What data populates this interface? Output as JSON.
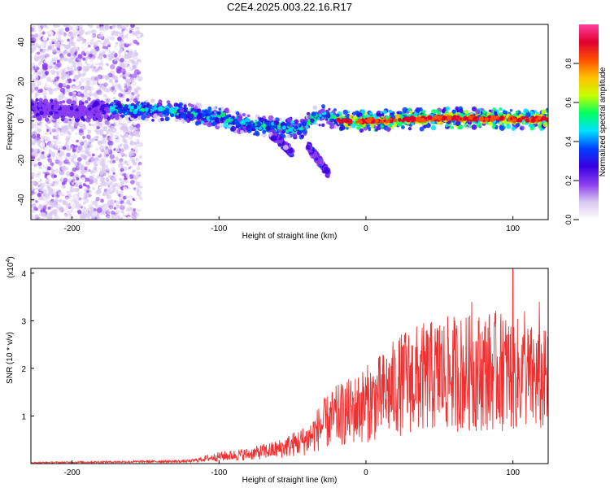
{
  "title": "C2E4.2025.003.22.16.R17",
  "chart_data": [
    {
      "type": "heatmap",
      "title": "C2E4.2025.003.22.16.R17",
      "xlabel": "Height of straight line (km)",
      "ylabel": "Frequency (Hz)",
      "xlim": [
        -228,
        124
      ],
      "ylim": [
        -50,
        49
      ],
      "x_ticks": [
        -200,
        -100,
        0,
        100
      ],
      "y_ticks": [
        -40,
        -20,
        0,
        20,
        40
      ],
      "colorbar": {
        "label": "Normalized spectral amplitude",
        "range": [
          0,
          1
        ],
        "ticks": [
          0.0,
          0.2,
          0.4,
          0.6,
          0.8
        ],
        "colormap": [
          "#ffffff",
          "#d8c8f0",
          "#8a3cf0",
          "#3a00e0",
          "#0040ff",
          "#00e0ff",
          "#00ff60",
          "#c8ff00",
          "#ffc000",
          "#ff5000",
          "#e00030",
          "#ff40a0"
        ]
      },
      "ridge": {
        "description": "dominant frequency track",
        "x": [
          -228,
          -200,
          -170,
          -150,
          -120,
          -100,
          -80,
          -60,
          -45,
          -35,
          -28,
          -20,
          -10,
          0,
          20,
          40,
          60,
          80,
          100,
          124
        ],
        "y": [
          6,
          5,
          6,
          5.5,
          4,
          2,
          -2,
          -3,
          -4,
          2,
          3,
          0.5,
          0,
          0,
          0.5,
          1,
          1.5,
          1.5,
          1,
          1
        ]
      },
      "branches": [
        {
          "x": [
            -65,
            -50
          ],
          "y": [
            -6,
            -16
          ]
        },
        {
          "x": [
            -40,
            -25
          ],
          "y": [
            -12,
            -27
          ]
        }
      ]
    },
    {
      "type": "line",
      "xlabel": "Height of straight line (km)",
      "ylabel": "SNR (10 * v/v)",
      "y_scale_label": "(x10",
      "y_scale_exp": "4",
      "y_scale_close": ")",
      "xlim": [
        -228,
        124
      ],
      "ylim": [
        0,
        4.1
      ],
      "x_ticks": [
        -200,
        -100,
        0,
        100
      ],
      "y_ticks": [
        1,
        2,
        3,
        4
      ],
      "color": "#f03030",
      "envelope": {
        "x": [
          -228,
          -120,
          -100,
          -80,
          -60,
          -40,
          -30,
          -20,
          -10,
          0,
          10,
          20,
          30,
          40,
          50,
          60,
          70,
          80,
          90,
          100,
          110,
          124
        ],
        "y": [
          0.02,
          0.05,
          0.15,
          0.2,
          0.3,
          0.5,
          0.8,
          1.0,
          1.1,
          1.25,
          1.4,
          1.6,
          1.75,
          1.8,
          1.85,
          1.9,
          1.9,
          1.95,
          1.95,
          1.9,
          1.8,
          1.7
        ]
      },
      "peaks": [
        {
          "x": 100,
          "y": 4.1
        },
        {
          "x": 72,
          "y": 3.4
        },
        {
          "x": 118,
          "y": 3.4
        },
        {
          "x": 108,
          "y": 3.2
        },
        {
          "x": 93,
          "y": 3.0
        },
        {
          "x": 50,
          "y": 2.9
        },
        {
          "x": 27,
          "y": 2.75
        }
      ]
    }
  ]
}
